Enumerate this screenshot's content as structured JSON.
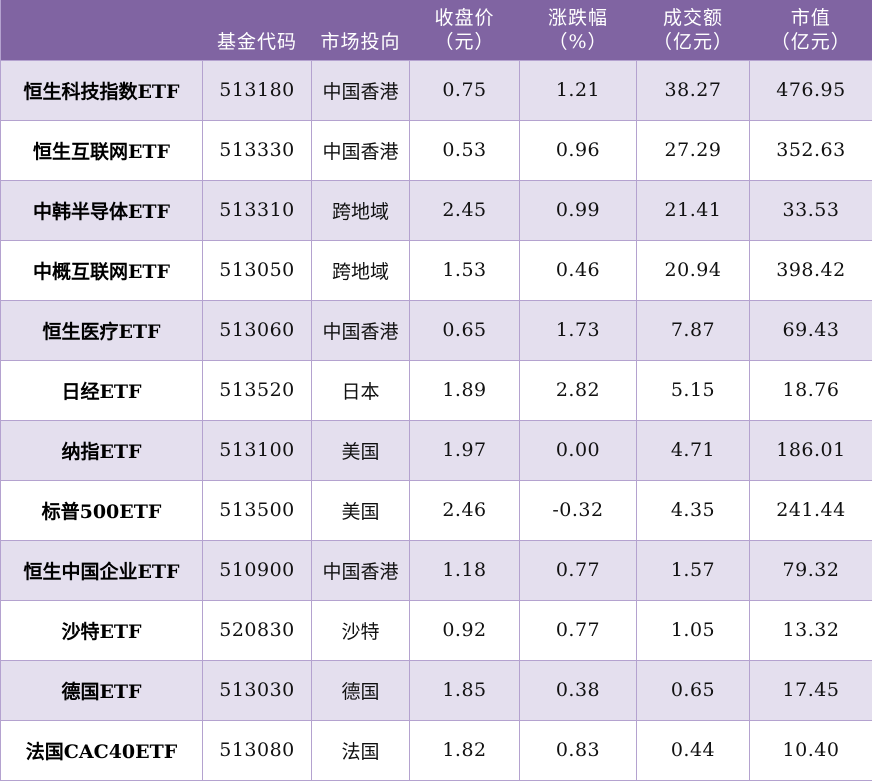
{
  "table": {
    "header_bg": "#8064a2",
    "odd_row_bg": "#e4dfee",
    "even_row_bg": "#ffffff",
    "border_color": "#b4a2cf",
    "columns": [
      {
        "line1": "",
        "line2": ""
      },
      {
        "line1": "基金代码",
        "line2": ""
      },
      {
        "line1": "市场投向",
        "line2": ""
      },
      {
        "line1": "收盘价",
        "line2": "（元）"
      },
      {
        "line1": "涨跌幅",
        "line2": "（%）"
      },
      {
        "line1": "成交额",
        "line2": "（亿元）"
      },
      {
        "line1": "市值",
        "line2": "（亿元）"
      }
    ],
    "rows": [
      {
        "name": "恒生科技指数ETF",
        "code": "513180",
        "market": "中国香港",
        "close": "0.75",
        "change": "1.21",
        "turnover": "38.27",
        "market_cap": "476.95"
      },
      {
        "name": "恒生互联网ETF",
        "code": "513330",
        "market": "中国香港",
        "close": "0.53",
        "change": "0.96",
        "turnover": "27.29",
        "market_cap": "352.63"
      },
      {
        "name": "中韩半导体ETF",
        "code": "513310",
        "market": "跨地域",
        "close": "2.45",
        "change": "0.99",
        "turnover": "21.41",
        "market_cap": "33.53"
      },
      {
        "name": "中概互联网ETF",
        "code": "513050",
        "market": "跨地域",
        "close": "1.53",
        "change": "0.46",
        "turnover": "20.94",
        "market_cap": "398.42"
      },
      {
        "name": "恒生医疗ETF",
        "code": "513060",
        "market": "中国香港",
        "close": "0.65",
        "change": "1.73",
        "turnover": "7.87",
        "market_cap": "69.43"
      },
      {
        "name": "日经ETF",
        "code": "513520",
        "market": "日本",
        "close": "1.89",
        "change": "2.82",
        "turnover": "5.15",
        "market_cap": "18.76"
      },
      {
        "name": "纳指ETF",
        "code": "513100",
        "market": "美国",
        "close": "1.97",
        "change": "0.00",
        "turnover": "4.71",
        "market_cap": "186.01"
      },
      {
        "name": "标普500ETF",
        "code": "513500",
        "market": "美国",
        "close": "2.46",
        "change": "-0.32",
        "turnover": "4.35",
        "market_cap": "241.44"
      },
      {
        "name": "恒生中国企业ETF",
        "code": "510900",
        "market": "中国香港",
        "close": "1.18",
        "change": "0.77",
        "turnover": "1.57",
        "market_cap": "79.32"
      },
      {
        "name": "沙特ETF",
        "code": "520830",
        "market": "沙特",
        "close": "0.92",
        "change": "0.77",
        "turnover": "1.05",
        "market_cap": "13.32"
      },
      {
        "name": "德国ETF",
        "code": "513030",
        "market": "德国",
        "close": "1.85",
        "change": "0.38",
        "turnover": "0.65",
        "market_cap": "17.45"
      },
      {
        "name": "法国CAC40ETF",
        "code": "513080",
        "market": "法国",
        "close": "1.82",
        "change": "0.83",
        "turnover": "0.44",
        "market_cap": "10.40"
      }
    ]
  }
}
